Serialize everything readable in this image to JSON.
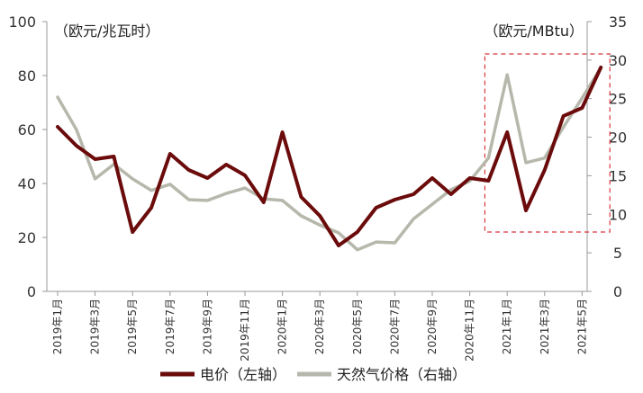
{
  "chart_data": {
    "type": "line",
    "left_axis_label": "（欧元/兆瓦时）",
    "right_axis_label": "（欧元/MBtu）",
    "left_ylim": [
      0,
      100
    ],
    "right_ylim": [
      0,
      35
    ],
    "left_ticks": [
      "0",
      "20",
      "40",
      "60",
      "80",
      "100"
    ],
    "right_ticks": [
      "0",
      "5",
      "10",
      "15",
      "20",
      "25",
      "30",
      "35"
    ],
    "x_tick_labels": [
      "2019年1月",
      "2019年3月",
      "2019年5月",
      "2019年7月",
      "2019年9月",
      "2019年11月",
      "2020年1月",
      "2020年3月",
      "2020年5月",
      "2020年7月",
      "2020年9月",
      "2020年11月",
      "2021年1月",
      "2021年3月",
      "2021年5月"
    ],
    "x": [
      "2019年1月",
      "2019年2月",
      "2019年3月",
      "2019年4月",
      "2019年5月",
      "2019年6月",
      "2019年7月",
      "2019年8月",
      "2019年9月",
      "2019年10月",
      "2019年11月",
      "2019年12月",
      "2020年1月",
      "2020年2月",
      "2020年3月",
      "2020年4月",
      "2020年5月",
      "2020年6月",
      "2020年7月",
      "2020年8月",
      "2020年9月",
      "2020年10月",
      "2020年11月",
      "2020年12月",
      "2021年1月",
      "2021年2月",
      "2021年3月",
      "2021年4月",
      "2021年5月",
      "2021年6月"
    ],
    "series": [
      {
        "name": "电价（左轴）",
        "axis": "left",
        "color": "#6b0b0b",
        "values": [
          61,
          54,
          49,
          50,
          22,
          31,
          51,
          45,
          42,
          47,
          43,
          33,
          59,
          35,
          28,
          17,
          22,
          31,
          34,
          36,
          42,
          36,
          42,
          41,
          59,
          30,
          45,
          65,
          68,
          83
        ]
      },
      {
        "name": "天然气价格（右轴）",
        "axis": "right",
        "color": "#b7b8ac",
        "values": [
          25.2,
          21.0,
          14.6,
          16.5,
          14.6,
          13.1,
          13.9,
          11.9,
          11.8,
          12.7,
          13.4,
          12.0,
          11.8,
          9.8,
          8.6,
          7.6,
          5.4,
          6.4,
          6.3,
          9.4,
          11.3,
          13.2,
          14.3,
          17.3,
          28.1,
          16.7,
          17.3,
          21.3,
          25.1,
          29.0
        ]
      }
    ],
    "highlight_box": {
      "from": "2020年12月",
      "to": "2021年6月",
      "color": "#d6373b",
      "style": "dashed"
    },
    "grid": false,
    "legend_position": "bottom"
  }
}
